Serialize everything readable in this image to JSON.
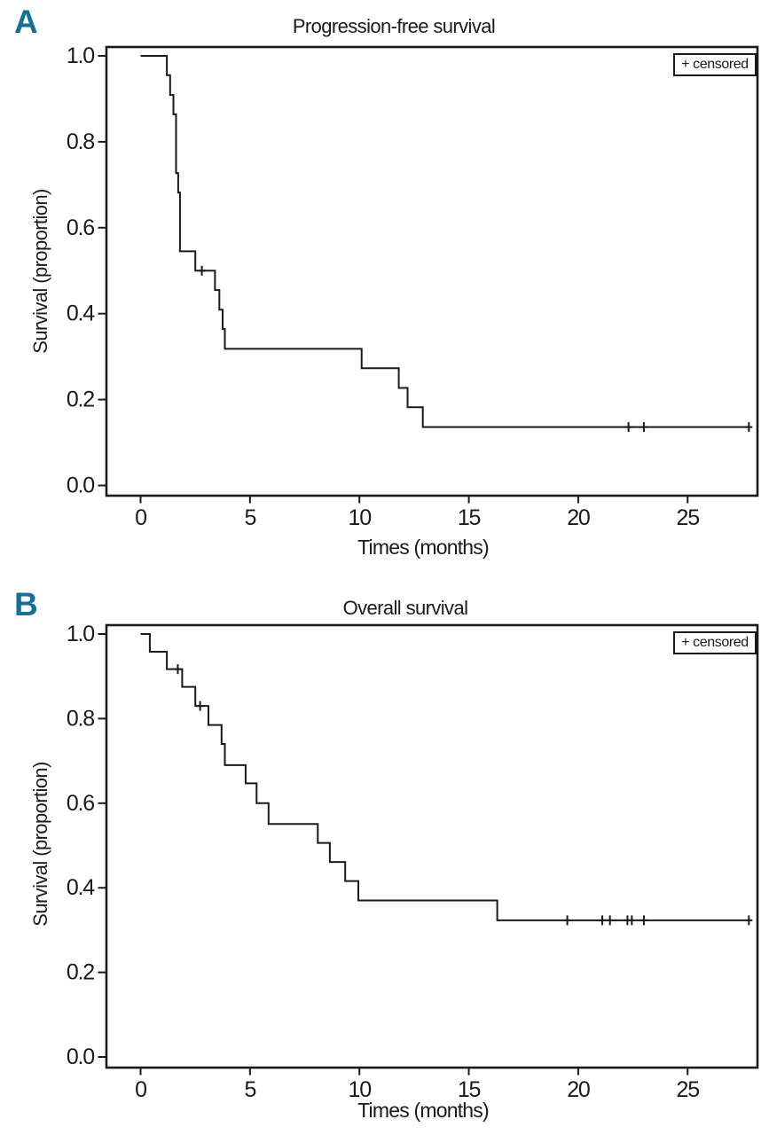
{
  "figure": {
    "background": "#ffffff",
    "ink_color": "#1a1a1a",
    "panel_label_color": "#176e96"
  },
  "chart_data": [
    {
      "panel_label": "A",
      "type": "line",
      "subtype": "kaplan_meier_step",
      "title": "Progression-free survival",
      "xlabel": "Times (months)",
      "ylabel": "Survival (proportion)",
      "legend": {
        "label": "+ censored",
        "position": "top-right",
        "boxed": true
      },
      "x_ticks": [
        0,
        5,
        10,
        15,
        20,
        25
      ],
      "y_ticks": [
        "1.0",
        "0.8",
        "0.6",
        "0.4",
        "0.2",
        "0.0"
      ],
      "xlim_months": [
        -1.6,
        28.2
      ],
      "ylim": [
        0,
        1
      ],
      "grid": false,
      "km_steps_time_survival": [
        [
          0,
          1.0
        ],
        [
          1.2,
          0.955
        ],
        [
          1.35,
          0.909
        ],
        [
          1.5,
          0.864
        ],
        [
          1.62,
          0.727
        ],
        [
          1.72,
          0.682
        ],
        [
          1.8,
          0.545
        ],
        [
          2.5,
          0.5
        ],
        [
          3.4,
          0.455
        ],
        [
          3.6,
          0.409
        ],
        [
          3.75,
          0.364
        ],
        [
          3.85,
          0.318
        ],
        [
          10.1,
          0.273
        ],
        [
          11.8,
          0.227
        ],
        [
          12.2,
          0.182
        ],
        [
          12.9,
          0.136
        ]
      ],
      "curve_end_time": 27.8,
      "censor_marks_time_survival": [
        [
          2.8,
          0.5
        ],
        [
          22.3,
          0.136
        ],
        [
          23.0,
          0.136
        ],
        [
          27.8,
          0.136
        ]
      ]
    },
    {
      "panel_label": "B",
      "type": "line",
      "subtype": "kaplan_meier_step",
      "title": "Overall survival",
      "xlabel": "Times (months)",
      "ylabel": "Survival (proportion)",
      "legend": {
        "label": "+ censored",
        "position": "top-right",
        "boxed": true
      },
      "x_ticks": [
        0,
        5,
        10,
        15,
        20,
        25
      ],
      "y_ticks": [
        "1.0",
        "0.8",
        "0.6",
        "0.4",
        "0.2",
        "0.0"
      ],
      "xlim_months": [
        -1.6,
        28.2
      ],
      "ylim": [
        0,
        1
      ],
      "grid": false,
      "km_steps_time_survival": [
        [
          0,
          1.0
        ],
        [
          0.42,
          0.958
        ],
        [
          1.2,
          0.917
        ],
        [
          1.9,
          0.875
        ],
        [
          2.5,
          0.83
        ],
        [
          3.1,
          0.785
        ],
        [
          3.7,
          0.74
        ],
        [
          3.85,
          0.69
        ],
        [
          4.8,
          0.647
        ],
        [
          5.3,
          0.6
        ],
        [
          5.85,
          0.551
        ],
        [
          8.1,
          0.506
        ],
        [
          8.65,
          0.461
        ],
        [
          9.35,
          0.416
        ],
        [
          9.95,
          0.37
        ],
        [
          16.3,
          0.323
        ]
      ],
      "curve_end_time": 27.8,
      "censor_marks_time_survival": [
        [
          1.7,
          0.917
        ],
        [
          2.72,
          0.83
        ],
        [
          19.5,
          0.323
        ],
        [
          21.1,
          0.323
        ],
        [
          21.45,
          0.323
        ],
        [
          22.25,
          0.323
        ],
        [
          22.45,
          0.323
        ],
        [
          23.0,
          0.323
        ],
        [
          27.8,
          0.323
        ]
      ]
    }
  ]
}
